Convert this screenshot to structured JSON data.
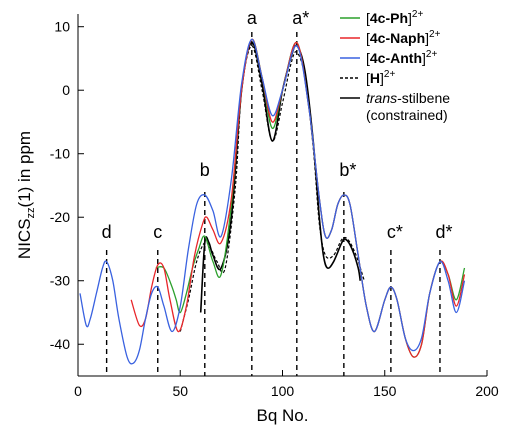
{
  "chart_data": {
    "type": "line",
    "xlabel": "Bq No.",
    "ylabel": "NICS",
    "ylabel_sub": "zz",
    "ylabel_rest": "(1) in ppm",
    "xlim": [
      0,
      200
    ],
    "ylim": [
      -45,
      12
    ],
    "xticks": [
      0,
      50,
      100,
      150,
      200
    ],
    "yticks": [
      -40,
      -30,
      -20,
      -10,
      0,
      10
    ],
    "grid": false,
    "legend_position": "top-right",
    "legend": [
      {
        "base": "[",
        "bold": "4c-Ph",
        "close": "]",
        "sup": "2+",
        "italic": "",
        "text": "",
        "line2": "",
        "color": "#2ca02c",
        "dash": ""
      },
      {
        "base": "[",
        "bold": "4c-Naph",
        "close": "]",
        "sup": "2+",
        "italic": "",
        "text": "",
        "line2": "",
        "color": "#e8262a",
        "dash": ""
      },
      {
        "base": "[",
        "bold": "4c-Anth",
        "close": "]",
        "sup": "2+",
        "italic": "",
        "text": "",
        "line2": "",
        "color": "#3a62e0",
        "dash": ""
      },
      {
        "base": "[",
        "bold": "H",
        "close": "]",
        "sup": "2+",
        "italic": "",
        "text": "",
        "line2": "",
        "color": "#000000",
        "dash": "3,2"
      },
      {
        "base": "",
        "bold": "",
        "close": "",
        "sup": "",
        "italic": "trans",
        "text": "-stilbene",
        "line2": "(constrained)",
        "color": "#000000",
        "dash": ""
      }
    ],
    "markers": [
      {
        "label": "d",
        "x": 14
      },
      {
        "label": "c",
        "x": 39
      },
      {
        "label": "b",
        "x": 62
      },
      {
        "label": "a",
        "x": 85
      },
      {
        "label": "a*",
        "x": 107
      },
      {
        "label": "b*",
        "x": 130
      },
      {
        "label": "c*",
        "x": 153
      },
      {
        "label": "d*",
        "x": 177
      }
    ],
    "series": [
      {
        "color": "#000000",
        "dash": "",
        "width": 1.6,
        "points": [
          [
            60,
            -35
          ],
          [
            62,
            -24
          ],
          [
            64,
            -24
          ],
          [
            66,
            -26
          ],
          [
            70,
            -28
          ],
          [
            75,
            -20
          ],
          [
            80,
            0
          ],
          [
            85,
            7.5
          ],
          [
            90,
            1
          ],
          [
            95,
            -8
          ],
          [
            100,
            0
          ],
          [
            104,
            5
          ],
          [
            107,
            7
          ],
          [
            111,
            3
          ],
          [
            115,
            -8
          ],
          [
            118,
            -20
          ],
          [
            120,
            -26
          ],
          [
            122,
            -28
          ],
          [
            125,
            -27
          ],
          [
            129,
            -24
          ],
          [
            131,
            -23.5
          ],
          [
            134,
            -25
          ],
          [
            137,
            -28
          ],
          [
            138,
            -30
          ]
        ]
      },
      {
        "color": "#000000",
        "dash": "3,2",
        "width": 1.2,
        "points": [
          [
            50,
            -38
          ],
          [
            54,
            -33
          ],
          [
            58,
            -27
          ],
          [
            62,
            -24
          ],
          [
            65,
            -25
          ],
          [
            68,
            -27
          ],
          [
            72,
            -28
          ],
          [
            77,
            -15
          ],
          [
            80,
            0
          ],
          [
            85,
            7
          ],
          [
            90,
            0
          ],
          [
            95,
            -8
          ],
          [
            100,
            -2
          ],
          [
            104,
            4
          ],
          [
            107,
            6
          ],
          [
            111,
            2
          ],
          [
            115,
            -9
          ],
          [
            118,
            -21
          ],
          [
            121,
            -26
          ],
          [
            125,
            -26
          ],
          [
            129,
            -23.5
          ],
          [
            132,
            -23.5
          ],
          [
            136,
            -26
          ],
          [
            140,
            -30
          ]
        ]
      },
      {
        "color": "#2ca02c",
        "dash": "",
        "width": 1.3,
        "points": [
          [
            38,
            -28
          ],
          [
            42,
            -28
          ],
          [
            46,
            -31
          ],
          [
            48,
            -33
          ],
          [
            50,
            -35
          ],
          [
            53,
            -32
          ],
          [
            56,
            -28
          ],
          [
            59,
            -25
          ],
          [
            62,
            -23
          ],
          [
            66,
            -27
          ],
          [
            70,
            -29
          ],
          [
            75,
            -18
          ],
          [
            80,
            0
          ],
          [
            85,
            8
          ],
          [
            90,
            2
          ],
          [
            95,
            -6
          ],
          [
            100,
            0
          ],
          [
            107,
            7.5
          ],
          [
            113,
            -3
          ],
          [
            118,
            -17
          ],
          [
            121,
            -23
          ],
          [
            124,
            -22
          ],
          [
            127,
            -18
          ],
          [
            130,
            -16.5
          ],
          [
            133,
            -18
          ],
          [
            137,
            -26
          ],
          [
            141,
            -34
          ],
          [
            145,
            -38
          ],
          [
            150,
            -33
          ],
          [
            153,
            -31
          ],
          [
            156,
            -33
          ],
          [
            160,
            -39
          ],
          [
            164,
            -42
          ],
          [
            168,
            -40
          ],
          [
            172,
            -32
          ],
          [
            177,
            -27
          ],
          [
            181,
            -29
          ],
          [
            185,
            -33
          ],
          [
            189,
            -28
          ]
        ]
      },
      {
        "color": "#e8262a",
        "dash": "",
        "width": 1.3,
        "points": [
          [
            26,
            -33
          ],
          [
            30,
            -37
          ],
          [
            33,
            -36
          ],
          [
            36,
            -31
          ],
          [
            39,
            -27.5
          ],
          [
            42,
            -28
          ],
          [
            45,
            -33
          ],
          [
            49,
            -38
          ],
          [
            53,
            -34
          ],
          [
            57,
            -26
          ],
          [
            61,
            -21
          ],
          [
            63,
            -20
          ],
          [
            66,
            -22
          ],
          [
            70,
            -24
          ],
          [
            75,
            -17
          ],
          [
            80,
            0
          ],
          [
            85,
            8
          ],
          [
            90,
            2
          ],
          [
            95,
            -5
          ],
          [
            100,
            0
          ],
          [
            107,
            7.5
          ],
          [
            113,
            -3
          ],
          [
            118,
            -17
          ],
          [
            121,
            -23
          ],
          [
            124,
            -22
          ],
          [
            127,
            -18
          ],
          [
            130,
            -16.5
          ],
          [
            133,
            -18
          ],
          [
            137,
            -26
          ],
          [
            141,
            -34
          ],
          [
            145,
            -38
          ],
          [
            150,
            -33
          ],
          [
            153,
            -31
          ],
          [
            156,
            -33
          ],
          [
            160,
            -39
          ],
          [
            164,
            -42
          ],
          [
            168,
            -40
          ],
          [
            172,
            -32
          ],
          [
            177,
            -27
          ],
          [
            181,
            -29
          ],
          [
            185,
            -34
          ],
          [
            189,
            -29
          ]
        ]
      },
      {
        "color": "#3a62e0",
        "dash": "",
        "width": 1.3,
        "points": [
          [
            1,
            -32
          ],
          [
            4,
            -37
          ],
          [
            6,
            -36
          ],
          [
            9,
            -32
          ],
          [
            12,
            -28
          ],
          [
            14,
            -27
          ],
          [
            17,
            -30
          ],
          [
            20,
            -36
          ],
          [
            24,
            -42
          ],
          [
            27,
            -43
          ],
          [
            30,
            -41
          ],
          [
            33,
            -36
          ],
          [
            36,
            -32
          ],
          [
            39,
            -31
          ],
          [
            42,
            -34
          ],
          [
            46,
            -38
          ],
          [
            50,
            -34
          ],
          [
            54,
            -25
          ],
          [
            58,
            -18
          ],
          [
            62,
            -16.5
          ],
          [
            66,
            -19
          ],
          [
            70,
            -23
          ],
          [
            75,
            -14
          ],
          [
            80,
            1
          ],
          [
            85,
            8
          ],
          [
            90,
            2
          ],
          [
            95,
            -4
          ],
          [
            100,
            0
          ],
          [
            107,
            7
          ],
          [
            113,
            -3
          ],
          [
            118,
            -17
          ],
          [
            121,
            -23
          ],
          [
            124,
            -22
          ],
          [
            127,
            -18
          ],
          [
            130,
            -16.5
          ],
          [
            133,
            -18
          ],
          [
            137,
            -26
          ],
          [
            141,
            -34
          ],
          [
            145,
            -38
          ],
          [
            150,
            -33
          ],
          [
            153,
            -31
          ],
          [
            156,
            -33
          ],
          [
            160,
            -39
          ],
          [
            164,
            -41
          ],
          [
            168,
            -39
          ],
          [
            172,
            -32
          ],
          [
            177,
            -27
          ],
          [
            181,
            -30
          ],
          [
            185,
            -35
          ],
          [
            189,
            -30
          ]
        ]
      }
    ]
  }
}
